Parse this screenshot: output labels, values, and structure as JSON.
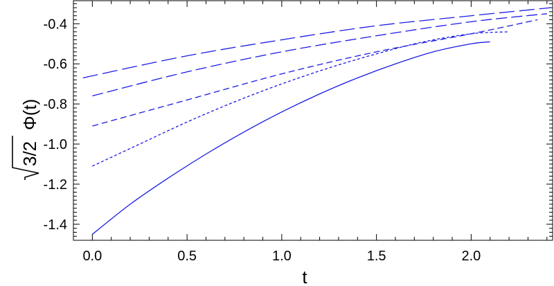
{
  "chart_data": {
    "type": "line",
    "title": "",
    "xlabel": "t",
    "ylabel_radicand": "3/2",
    "ylabel_function": "Φ(t)",
    "xlim": [
      -0.1,
      2.43
    ],
    "ylim": [
      -1.48,
      -0.285
    ],
    "x_ticks": [
      0.0,
      0.5,
      1.0,
      1.5,
      2.0
    ],
    "x_tick_labels": [
      "0.0",
      "0.5",
      "1.0",
      "1.5",
      "2.0"
    ],
    "y_ticks": [
      -1.4,
      -1.2,
      -1.0,
      -0.8,
      -0.6,
      -0.4
    ],
    "y_tick_labels": [
      "-1.4",
      "-1.2",
      "-1.0",
      "-0.8",
      "-0.6",
      "-0.4"
    ],
    "grid": false,
    "line_color": "#1a1ae6",
    "series": [
      {
        "style": "solid",
        "x": [
          0.0,
          0.2,
          0.4,
          0.6,
          0.8,
          1.0,
          1.2,
          1.4,
          1.6,
          1.8,
          2.0,
          2.1
        ],
        "y": [
          -1.45,
          -1.3,
          -1.17,
          -1.05,
          -0.94,
          -0.84,
          -0.75,
          -0.67,
          -0.6,
          -0.54,
          -0.5,
          -0.49
        ]
      },
      {
        "style": "dotted",
        "x": [
          0.0,
          0.25,
          0.5,
          0.75,
          1.0,
          1.25,
          1.5,
          1.75,
          2.0,
          2.2
        ],
        "y": [
          -1.11,
          -1.0,
          -0.89,
          -0.79,
          -0.7,
          -0.62,
          -0.55,
          -0.49,
          -0.45,
          -0.44
        ]
      },
      {
        "style": "dashed",
        "x": [
          0.0,
          0.5,
          1.0,
          1.5,
          2.0,
          2.35
        ],
        "y": [
          -0.91,
          -0.78,
          -0.65,
          -0.54,
          -0.45,
          -0.38
        ]
      },
      {
        "style": "long-dashed",
        "x": [
          0.0,
          0.5,
          1.0,
          1.5,
          2.0,
          2.4
        ],
        "y": [
          -0.76,
          -0.64,
          -0.54,
          -0.46,
          -0.39,
          -0.35
        ]
      },
      {
        "style": "longest-dashed",
        "x": [
          -0.05,
          0.5,
          1.0,
          1.5,
          2.0,
          2.42
        ],
        "y": [
          -0.67,
          -0.56,
          -0.48,
          -0.41,
          -0.36,
          -0.32
        ]
      }
    ]
  }
}
